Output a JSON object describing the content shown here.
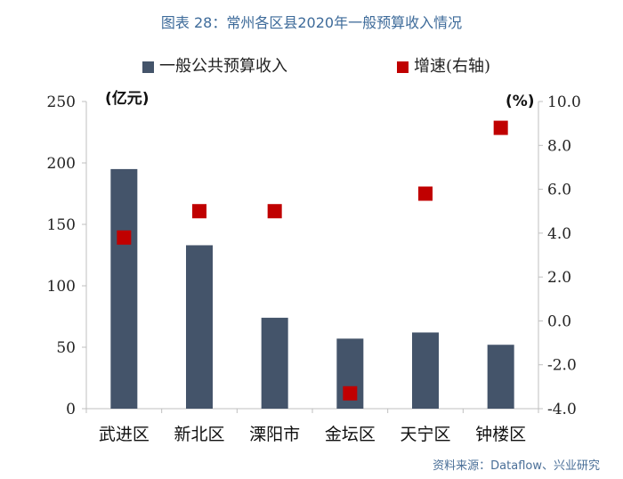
{
  "chart_data": {
    "type": "bar",
    "title": "图表 28：常州各区县2020年一般预算收入情况",
    "categories": [
      "武进区",
      "新北区",
      "溧阳市",
      "金坛区",
      "天宁区",
      "钟楼区"
    ],
    "series": [
      {
        "name": "一般公共预算收入",
        "type": "bar",
        "axis": "left",
        "values": [
          195,
          133,
          74,
          57,
          62,
          52
        ],
        "color": "#44546a"
      },
      {
        "name": "增速(右轴)",
        "type": "scatter",
        "axis": "right",
        "values": [
          3.8,
          5.0,
          5.0,
          -3.3,
          5.8,
          8.8
        ],
        "color": "#c00000"
      }
    ],
    "y_left": {
      "label": "(亿元)",
      "min": 0,
      "max": 250,
      "ticks": [
        "0",
        "50",
        "100",
        "150",
        "200",
        "250"
      ]
    },
    "y_right": {
      "label": "(%)",
      "min": -4,
      "max": 10,
      "ticks": [
        "-4.0",
        "-2.0",
        "0.0",
        "2.0",
        "4.0",
        "6.0",
        "8.0",
        "10.0"
      ],
      "tick_values": [
        -4,
        -2,
        0,
        2,
        4,
        6,
        8,
        10
      ]
    },
    "grid": false,
    "legend_position": "top"
  },
  "source": "资料来源：Dataflow、兴业研究"
}
